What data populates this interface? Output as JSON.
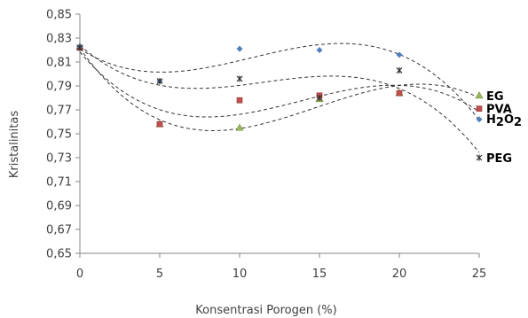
{
  "chart_data": {
    "type": "scatter",
    "title": "",
    "xlabel": "Konsentrasi Porogen (%)",
    "ylabel": "Kristalinitas",
    "xlim": [
      0,
      25
    ],
    "ylim": [
      0.65,
      0.85
    ],
    "x_ticks": [
      "0",
      "5",
      "10",
      "15",
      "20",
      "25"
    ],
    "y_ticks": [
      "0,65",
      "0,67",
      "0,69",
      "0,71",
      "0,73",
      "0,75",
      "0,77",
      "0,79",
      "0,81",
      "0,83",
      "0,85"
    ],
    "x_tick_values": [
      0,
      5,
      10,
      15,
      20,
      25
    ],
    "y_tick_values": [
      0.65,
      0.67,
      0.69,
      0.71,
      0.73,
      0.75,
      0.77,
      0.79,
      0.81,
      0.83,
      0.85
    ],
    "grid": false,
    "trendlines": "polynomial, dashed",
    "series": [
      {
        "name": "EG",
        "marker": "triangle",
        "color": "#9BBB59",
        "x": [
          0,
          5,
          10,
          15,
          20,
          25
        ],
        "y": [
          0.823,
          0.758,
          0.755,
          0.779,
          0.784,
          0.782
        ]
      },
      {
        "name": "PVA",
        "marker": "square",
        "color": "#C0504D",
        "x": [
          0,
          5,
          10,
          15,
          20,
          25
        ],
        "y": [
          0.822,
          0.758,
          0.778,
          0.782,
          0.784,
          0.771
        ]
      },
      {
        "name": "H2O2",
        "marker": "diamond",
        "color": "#4F81BD",
        "x": [
          0,
          5,
          10,
          15,
          20,
          25
        ],
        "y": [
          0.823,
          0.794,
          0.821,
          0.82,
          0.816,
          0.762
        ]
      },
      {
        "name": "PEG",
        "marker": "star",
        "color": "#333333",
        "x": [
          0,
          5,
          10,
          15,
          20,
          25
        ],
        "y": [
          0.822,
          0.794,
          0.796,
          0.78,
          0.803,
          0.73
        ]
      }
    ]
  }
}
